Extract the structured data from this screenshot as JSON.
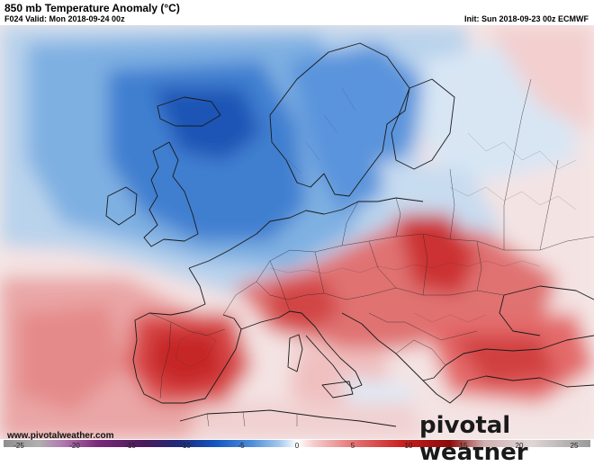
{
  "header": {
    "title": "850 mb Temperature Anomaly (°C)",
    "valid": "F024 Valid: Mon 2018-09-24 00z",
    "init": "Init: Sun 2018-09-23 00z ECMWF"
  },
  "footer": {
    "website": "www.pivotalweather.com",
    "brand": "pivotal weather"
  },
  "colorbar": {
    "ticks": [
      "-25",
      "-20",
      "-15",
      "-10",
      "-5",
      "0",
      "5",
      "10",
      "15",
      "20",
      "25"
    ],
    "colors": [
      "#6e6e6e",
      "#8c3a8c",
      "#5a1e6e",
      "#1e1e78",
      "#0a50c8",
      "#5096e6",
      "#b4d2f0",
      "#ffffff",
      "#f5c8c8",
      "#e66464",
      "#c81e1e",
      "#8c0a0a",
      "#d4b4b4",
      "#a0a0a0"
    ]
  },
  "map": {
    "region": "Europe",
    "legend_range": [
      -25,
      25
    ]
  }
}
